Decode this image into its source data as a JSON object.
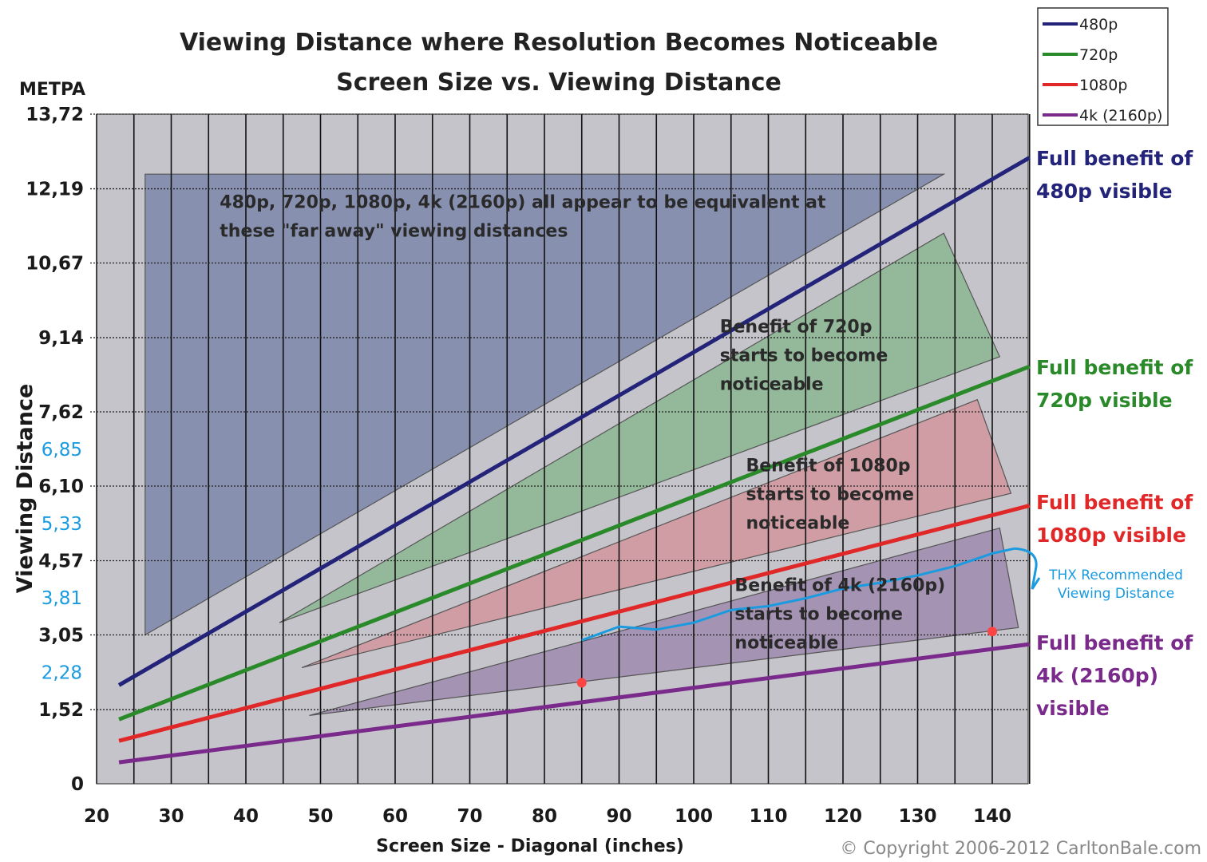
{
  "chart_data": {
    "type": "line",
    "title_lines": [
      "Viewing Distance where Resolution Becomes Noticeable",
      "Screen Size vs. Viewing Distance"
    ],
    "xlabel": "Screen Size - Diagonal (inches)",
    "ylabel": "Viewing Distance",
    "y_unit": "METPA",
    "xlim": [
      20,
      145
    ],
    "ylim": [
      0,
      13.72
    ],
    "x_ticks": [
      20,
      30,
      40,
      50,
      60,
      70,
      80,
      90,
      100,
      110,
      120,
      130,
      140
    ],
    "y_ticks": [
      {
        "value": 0,
        "label": "0"
      },
      {
        "value": 1.52,
        "label": "1,52"
      },
      {
        "value": 3.05,
        "label": "3,05"
      },
      {
        "value": 4.57,
        "label": "4,57"
      },
      {
        "value": 6.1,
        "label": "6,10"
      },
      {
        "value": 7.62,
        "label": "7,62"
      },
      {
        "value": 9.14,
        "label": "9,14"
      },
      {
        "value": 10.67,
        "label": "10,67"
      },
      {
        "value": 12.19,
        "label": "12,19"
      },
      {
        "value": 13.72,
        "label": "13,72"
      }
    ],
    "y_extra_ticks": [
      {
        "value": 2.28,
        "label": "2,28"
      },
      {
        "value": 3.81,
        "label": "3,81"
      },
      {
        "value": 5.33,
        "label": "5,33"
      },
      {
        "value": 6.85,
        "label": "6,85"
      }
    ],
    "grid": true,
    "legend_position": "top-right",
    "series": [
      {
        "name": "480p",
        "color": "#23237a",
        "x": [
          23,
          145
        ],
        "y": [
          2.02,
          12.83
        ],
        "end_label": [
          "Full benefit of",
          "480p visible"
        ]
      },
      {
        "name": "720p",
        "color": "#2a8a2a",
        "x": [
          23,
          145
        ],
        "y": [
          1.32,
          8.55
        ],
        "end_label": [
          "Full benefit of",
          "720p visible"
        ]
      },
      {
        "name": "1080p",
        "color": "#e02828",
        "x": [
          23,
          145
        ],
        "y": [
          0.88,
          5.7
        ],
        "end_label": [
          "Full benefit of",
          "1080p visible"
        ]
      },
      {
        "name": "4k (2160p)",
        "color": "#7a2a8a",
        "x": [
          23,
          145
        ],
        "y": [
          0.44,
          2.86
        ],
        "end_label": [
          "Full benefit of",
          "4k (2160p)",
          "visible"
        ]
      }
    ],
    "regions": [
      {
        "fill": "#8890b0",
        "points": [
          [
            26.5,
            3.05
          ],
          [
            26.5,
            12.49
          ],
          [
            133.5,
            12.49
          ]
        ],
        "label": [
          "480p, 720p, 1080p, 4k (2160p) all appear to be equivalent at",
          "these \"far away\" viewing distances"
        ],
        "label_at": [
          36.5,
          11.8
        ]
      },
      {
        "fill": "#93b89a",
        "points": [
          [
            44.5,
            3.3
          ],
          [
            133.5,
            11.28
          ],
          [
            141,
            8.75
          ]
        ],
        "label": [
          "Benefit of 720p",
          "starts to become",
          "noticeable"
        ],
        "label_at": [
          103.5,
          9.25
        ]
      },
      {
        "fill": "#cf9da3",
        "points": [
          [
            47.5,
            2.38
          ],
          [
            138,
            7.87
          ],
          [
            142.5,
            5.95
          ]
        ],
        "label": [
          "Benefit of 1080p",
          "starts to become",
          "noticeable"
        ],
        "label_at": [
          107,
          6.4
        ]
      },
      {
        "fill": "#a493b3",
        "points": [
          [
            48.5,
            1.4
          ],
          [
            141,
            5.24
          ],
          [
            143.5,
            3.2
          ]
        ],
        "label": [
          "Benefit of 4k (2160p)",
          "starts to become",
          "noticeable"
        ],
        "label_at": [
          105.5,
          3.95
        ]
      }
    ],
    "annotation_curve": {
      "label": [
        "THX Recommended",
        "Viewing Distance"
      ],
      "color": "#1a9be0",
      "x": [
        85,
        90,
        95,
        100,
        105,
        110,
        115,
        120,
        125,
        130,
        135,
        140,
        143
      ],
      "y": [
        2.94,
        3.22,
        3.16,
        3.3,
        3.56,
        3.64,
        3.8,
        4.0,
        4.12,
        4.27,
        4.46,
        4.72,
        4.82
      ]
    },
    "markers": [
      {
        "x": 85,
        "y": 2.07,
        "color": "#ff4444"
      },
      {
        "x": 140,
        "y": 3.12,
        "color": "#ff4444"
      }
    ]
  },
  "copyright": "© Copyright 2006-2012 CarltonBale.com"
}
